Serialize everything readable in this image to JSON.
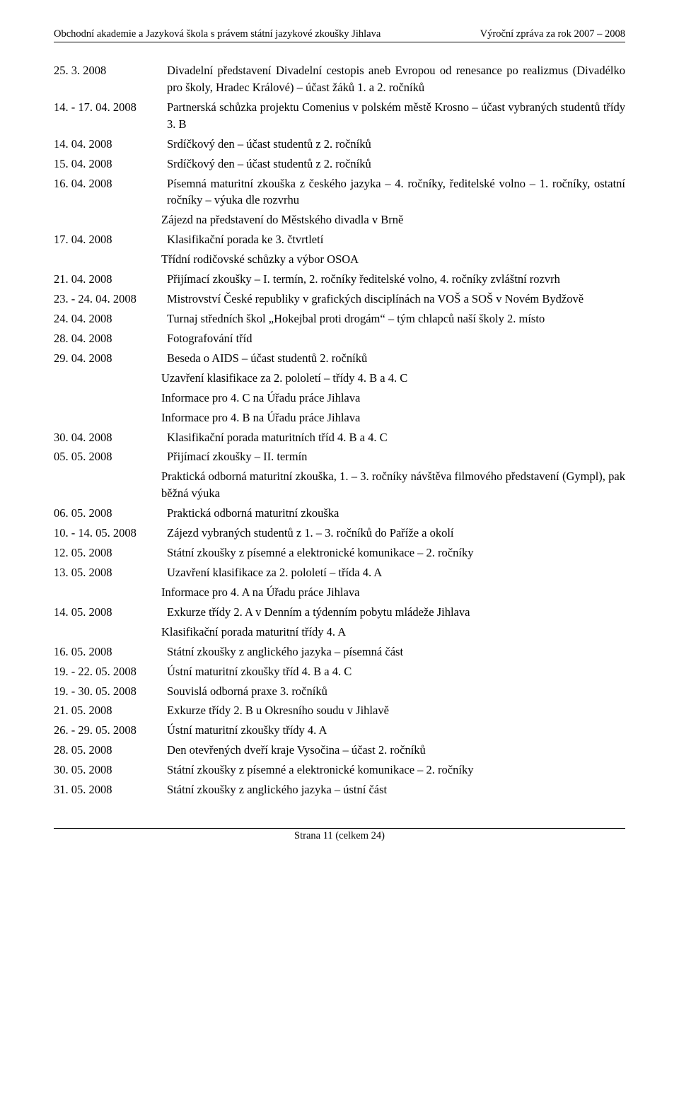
{
  "header": {
    "left": "Obchodní akademie a Jazyková škola s právem státní jazykové zkoušky Jihlava",
    "right": "Výroční zpráva za rok 2007 – 2008"
  },
  "entries": [
    {
      "date": "25. 3. 2008",
      "text": "Divadelní představení Divadelní cestopis aneb Evropou od renesance po realizmus (Divadélko pro školy, Hradec Králové) – účast žáků 1. a 2. ročníků"
    },
    {
      "date": "14. - 17. 04. 2008",
      "text": "Partnerská schůzka projektu Comenius v polském městě Krosno – účast vybraných studentů třídy 3. B"
    },
    {
      "date": "14. 04. 2008",
      "text": "Srdíčkový den – účast studentů z 2. ročníků"
    },
    {
      "date": "15. 04. 2008",
      "text": "Srdíčkový den – účast studentů z 2. ročníků"
    },
    {
      "date": "16. 04. 2008",
      "text": "Písemná maturitní zkouška z českého jazyka – 4. ročníky, ředitelské volno – 1. ročníky, ostatní ročníky – výuka dle rozvrhu"
    },
    {
      "date": "",
      "text": "Zájezd na představení do Městského divadla v Brně"
    },
    {
      "date": "17. 04. 2008",
      "text": "Klasifikační porada ke 3. čtvrtletí"
    },
    {
      "date": "",
      "text": "Třídní rodičovské schůzky a výbor OSOA"
    },
    {
      "date": "21. 04. 2008",
      "text": "Přijímací zkoušky – I. termín, 2. ročníky ředitelské volno, 4. ročníky zvláštní rozvrh"
    },
    {
      "date": "23. - 24. 04. 2008",
      "text": "Mistrovství České republiky v grafických disciplínách na VOŠ a SOŠ v Novém Bydžově"
    },
    {
      "date": "24. 04. 2008",
      "text": "Turnaj středních škol „Hokejbal proti drogám“ – tým chlapců naší školy 2. místo"
    },
    {
      "date": "28. 04. 2008",
      "text": "Fotografování tříd"
    },
    {
      "date": "29. 04. 2008",
      "text": "Beseda o AIDS – účast studentů 2. ročníků"
    },
    {
      "date": "",
      "text": "Uzavření klasifikace za 2. pololetí – třídy 4. B a 4. C"
    },
    {
      "date": "",
      "text": "Informace pro 4. C na Úřadu práce Jihlava"
    },
    {
      "date": "",
      "text": "Informace pro 4. B na Úřadu práce Jihlava"
    },
    {
      "date": "30. 04. 2008",
      "text": "Klasifikační porada maturitních tříd 4. B a 4. C"
    },
    {
      "date": "05. 05. 2008",
      "text": "Přijímací zkoušky – II. termín"
    },
    {
      "date": "",
      "text": "Praktická odborná maturitní zkouška, 1. – 3. ročníky návštěva filmového představení (Gympl), pak běžná výuka"
    },
    {
      "date": "06. 05. 2008",
      "text": "Praktická odborná maturitní zkouška"
    },
    {
      "date": "10. - 14. 05. 2008",
      "text": "Zájezd vybraných studentů z 1. – 3. ročníků do Paříže a okolí"
    },
    {
      "date": "12. 05. 2008",
      "text": "Státní zkoušky z písemné a elektronické komunikace – 2. ročníky"
    },
    {
      "date": "13. 05. 2008",
      "text": "Uzavření klasifikace za 2. pololetí – třída 4. A"
    },
    {
      "date": "",
      "text": "Informace pro 4. A na Úřadu práce Jihlava"
    },
    {
      "date": "14. 05. 2008",
      "text": "Exkurze třídy 2. A v Denním a týdenním pobytu mládeže Jihlava"
    },
    {
      "date": "",
      "text": "Klasifikační porada maturitní třídy 4. A"
    },
    {
      "date": "16. 05. 2008",
      "text": "Státní zkoušky z anglického jazyka – písemná část"
    },
    {
      "date": "19. - 22. 05. 2008",
      "text": "Ústní maturitní zkoušky tříd 4. B a 4. C"
    },
    {
      "date": "19. - 30. 05. 2008",
      "text": "Souvislá odborná praxe 3. ročníků"
    },
    {
      "date": "21. 05. 2008",
      "text": "Exkurze třídy 2. B u Okresního soudu v Jihlavě"
    },
    {
      "date": "26. - 29. 05. 2008",
      "text": "Ústní maturitní zkoušky třídy 4. A"
    },
    {
      "date": "28. 05. 2008",
      "text": "Den otevřených dveří kraje Vysočina – účast 2. ročníků"
    },
    {
      "date": "30. 05. 2008",
      "text": "Státní zkoušky z písemné a elektronické komunikace – 2. ročníky"
    },
    {
      "date": "31. 05. 2008",
      "text": "Státní zkoušky z anglického jazyka – ústní část"
    }
  ],
  "footer": "Strana 11 (celkem 24)"
}
